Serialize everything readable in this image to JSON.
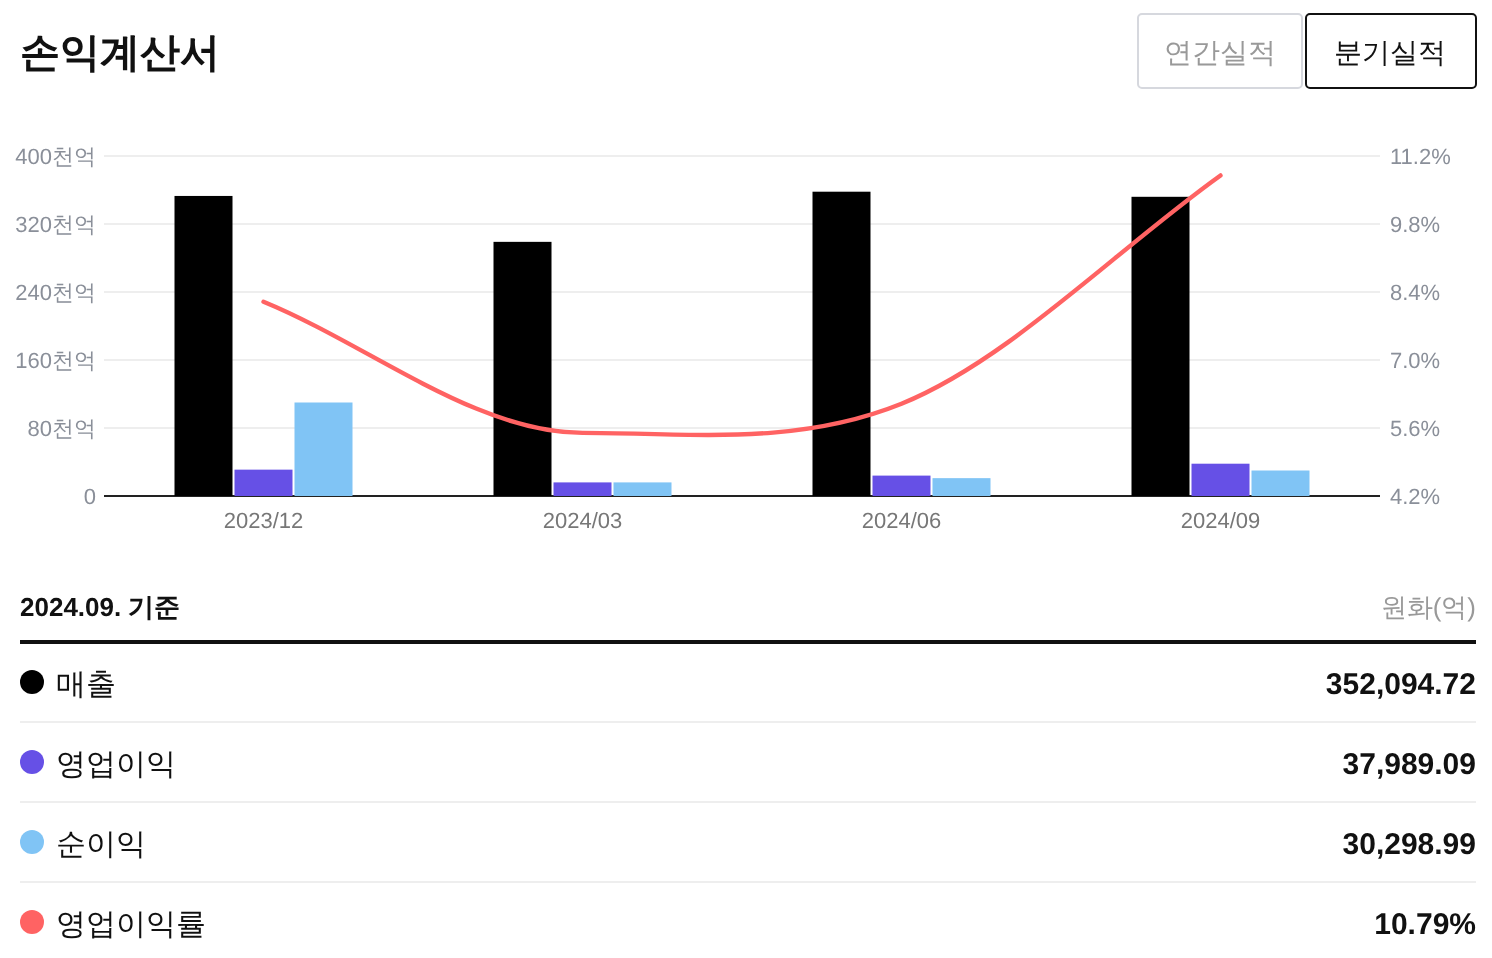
{
  "chart_data": {
    "type": "bar",
    "title": "손익계산서",
    "annotations": [
      "연간실적",
      "분기실적",
      "2024.09. 기준",
      "원화(억)",
      "352,094.72",
      "37,989.09",
      "30,298.99",
      "10.79%"
    ],
    "categories": [
      "2023/12",
      "2024/03",
      "2024/06",
      "2024/09"
    ],
    "series": [
      {
        "name": "매출",
        "color": "#000000",
        "values": [
          353,
          299,
          358,
          352
        ]
      },
      {
        "name": "영업이익",
        "color": "#6650e6",
        "values": [
          31,
          16,
          24,
          38
        ]
      },
      {
        "name": "순이익",
        "color": "#80c4f5",
        "values": [
          110,
          16,
          21,
          30
        ]
      },
      {
        "name": "영업이익률",
        "type": "line",
        "axis": "y2",
        "color": "#ff6363",
        "values": [
          8.2,
          5.5,
          6.1,
          10.8
        ]
      }
    ],
    "ylim": [
      0,
      400
    ],
    "yticks": [
      0,
      {
        "value": 80,
        "label": "80천억"
      },
      {
        "value": 160,
        "label": "160천억"
      },
      {
        "value": 240,
        "label": "240천억"
      },
      {
        "value": 320,
        "label": "320천억"
      },
      {
        "value": 400,
        "label": "400천억"
      }
    ],
    "y2lim": [
      4.2,
      11.2
    ],
    "y2ticks": [
      {
        "value": 4.2,
        "label": "4.2%"
      },
      {
        "value": 5.6,
        "label": "5.6%"
      },
      {
        "value": 7.0,
        "label": "7.0%"
      },
      {
        "value": 8.4,
        "label": "8.4%"
      },
      {
        "value": 9.8,
        "label": "9.8%"
      },
      {
        "value": 11.2,
        "label": "11.2%"
      }
    ],
    "grid": "y",
    "legend": "bottom"
  }
}
